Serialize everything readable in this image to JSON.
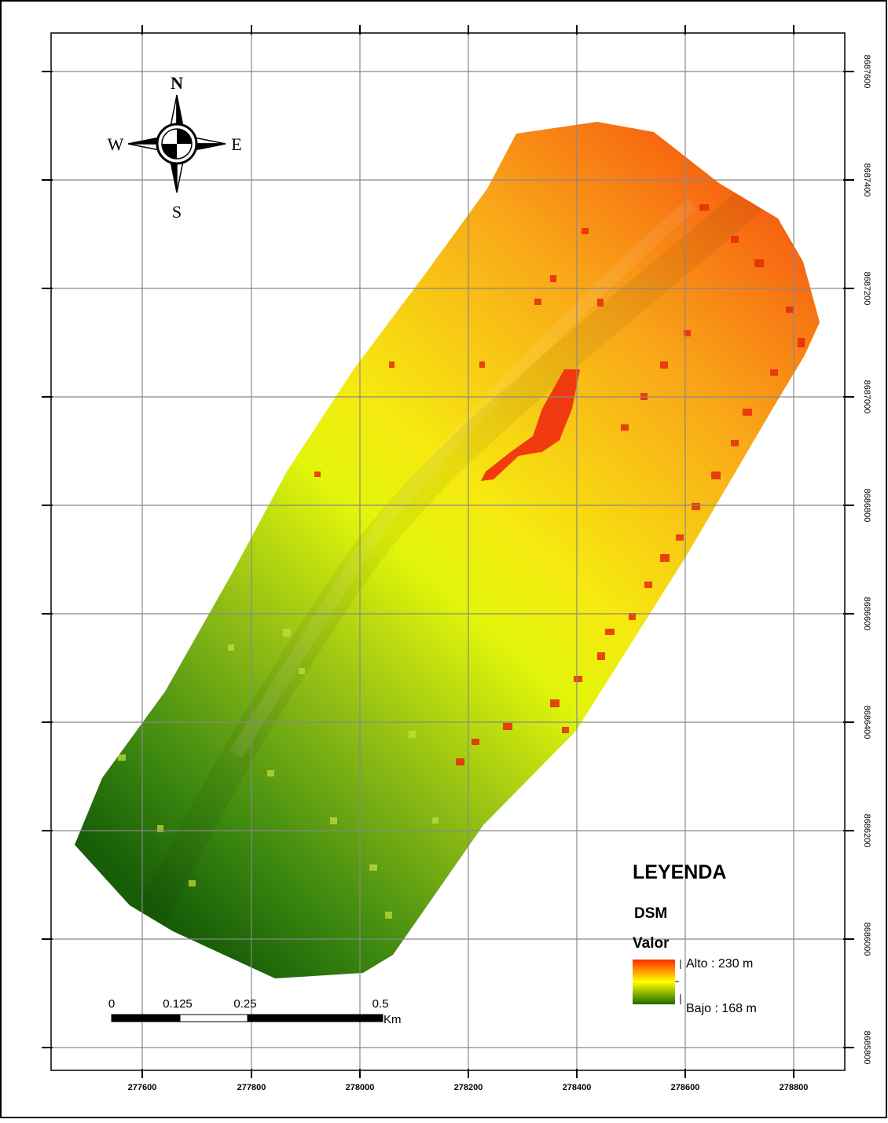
{
  "map": {
    "x_axis": {
      "ticks": [
        "277600",
        "277800",
        "278000",
        "278200",
        "278400",
        "278600",
        "278800"
      ]
    },
    "y_axis": {
      "ticks": [
        "8687600",
        "8687400",
        "8687200",
        "8687000",
        "8686800",
        "8686600",
        "8686400",
        "8686200",
        "8686000",
        "8685800"
      ]
    },
    "north_arrow": {
      "n": "N",
      "s": "S",
      "e": "E",
      "w": "W"
    },
    "legend": {
      "title": "LEYENDA",
      "layer": "DSM",
      "field": "Valor",
      "high_label": "Alto : 230 m",
      "low_label": "Bajo : 168 m",
      "high_value": 230,
      "low_value": 168,
      "colors": [
        "#ff2a00",
        "#ffff00",
        "#1e6b00"
      ]
    },
    "scale_bar": {
      "labels": [
        "0",
        "0.125",
        "0.25",
        "0.5"
      ],
      "unit": "Km"
    }
  }
}
